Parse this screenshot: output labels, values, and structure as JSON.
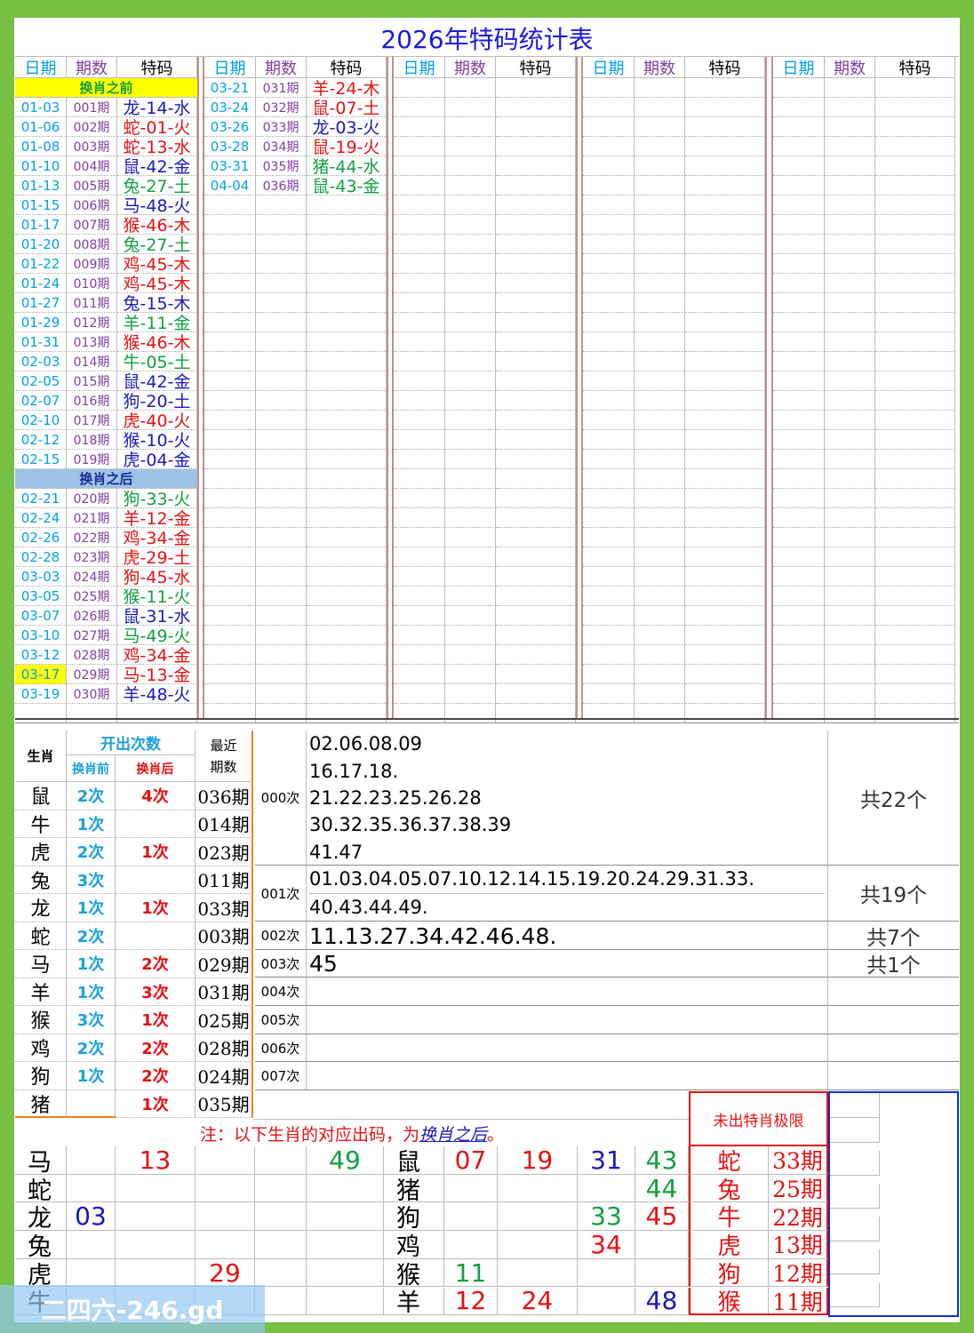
{
  "title": "2026年特码统计表",
  "groups": [
    {
      "headers": [
        "日期",
        "期数",
        "特码"
      ],
      "rows": [
        {
          "section": "换肖之前",
          "bg": "#ffff00",
          "fg": "#10a040"
        },
        {
          "date": "01-03",
          "period": "001期",
          "code": "龙-14-水",
          "color": "#1818c0"
        },
        {
          "date": "01-06",
          "period": "002期",
          "code": "蛇-01-火",
          "color": "#e81010"
        },
        {
          "date": "01-08",
          "period": "003期",
          "code": "蛇-13-水",
          "color": "#e81010"
        },
        {
          "date": "01-10",
          "period": "004期",
          "code": "鼠-42-金",
          "color": "#1818c0"
        },
        {
          "date": "01-13",
          "period": "005期",
          "code": "兔-27-土",
          "color": "#10a040"
        },
        {
          "date": "01-15",
          "period": "006期",
          "code": "马-48-火",
          "color": "#1818c0"
        },
        {
          "date": "01-17",
          "period": "007期",
          "code": "猴-46-木",
          "color": "#e81010"
        },
        {
          "date": "01-20",
          "period": "008期",
          "code": "兔-27-土",
          "color": "#10a040"
        },
        {
          "date": "01-22",
          "period": "009期",
          "code": "鸡-45-木",
          "color": "#e81010"
        },
        {
          "date": "01-24",
          "period": "010期",
          "code": "鸡-45-木",
          "color": "#e81010"
        },
        {
          "date": "01-27",
          "period": "011期",
          "code": "兔-15-木",
          "color": "#1818c0"
        },
        {
          "date": "01-29",
          "period": "012期",
          "code": "羊-11-金",
          "color": "#10a040"
        },
        {
          "date": "01-31",
          "period": "013期",
          "code": "猴-46-木",
          "color": "#e81010"
        },
        {
          "date": "02-03",
          "period": "014期",
          "code": "牛-05-土",
          "color": "#10a040"
        },
        {
          "date": "02-05",
          "period": "015期",
          "code": "鼠-42-金",
          "color": "#1818c0"
        },
        {
          "date": "02-07",
          "period": "016期",
          "code": "狗-20-土",
          "color": "#1818c0"
        },
        {
          "date": "02-10",
          "period": "017期",
          "code": "虎-40-火",
          "color": "#e81010"
        },
        {
          "date": "02-12",
          "period": "018期",
          "code": "猴-10-火",
          "color": "#1818c0"
        },
        {
          "date": "02-15",
          "period": "019期",
          "code": "虎-04-金",
          "color": "#1818c0"
        },
        {
          "section": "换肖之后",
          "bg": "#9dc3e6",
          "fg": "#1a2a9a"
        },
        {
          "date": "02-21",
          "period": "020期",
          "code": "狗-33-火",
          "color": "#10a040"
        },
        {
          "date": "02-24",
          "period": "021期",
          "code": "羊-12-金",
          "color": "#e81010"
        },
        {
          "date": "02-26",
          "period": "022期",
          "code": "鸡-34-金",
          "color": "#e81010"
        },
        {
          "date": "02-28",
          "period": "023期",
          "code": "虎-29-土",
          "color": "#e81010"
        },
        {
          "date": "03-03",
          "period": "024期",
          "code": "狗-45-水",
          "color": "#e81010"
        },
        {
          "date": "03-05",
          "period": "025期",
          "code": "猴-11-火",
          "color": "#10a040"
        },
        {
          "date": "03-07",
          "period": "026期",
          "code": "鼠-31-水",
          "color": "#1818c0"
        },
        {
          "date": "03-10",
          "period": "027期",
          "code": "马-49-火",
          "color": "#10a040"
        },
        {
          "date": "03-12",
          "period": "028期",
          "code": "鸡-34-金",
          "color": "#e81010"
        },
        {
          "date": "03-17",
          "period": "029期",
          "code": "马-13-金",
          "color": "#e81010",
          "date_bg": "#ffff00"
        },
        {
          "date": "03-19",
          "period": "030期",
          "code": "羊-48-火",
          "color": "#1818c0"
        }
      ]
    },
    {
      "headers": [
        "日期",
        "期数",
        "特码"
      ],
      "rows": [
        {
          "date": "03-21",
          "period": "031期",
          "code": "羊-24-木",
          "color": "#e81010"
        },
        {
          "date": "03-24",
          "period": "032期",
          "code": "鼠-07-土",
          "color": "#e81010"
        },
        {
          "date": "03-26",
          "period": "033期",
          "code": "龙-03-火",
          "color": "#1818c0"
        },
        {
          "date": "03-28",
          "period": "034期",
          "code": "鼠-19-火",
          "color": "#e81010"
        },
        {
          "date": "03-31",
          "period": "035期",
          "code": "猪-44-水",
          "color": "#10a040"
        },
        {
          "date": "04-04",
          "period": "036期",
          "code": "鼠-43-金",
          "color": "#10a040"
        }
      ]
    },
    {
      "headers": [
        "日期",
        "期数",
        "特码"
      ],
      "rows": []
    },
    {
      "headers": [
        "日期",
        "期数",
        "特码"
      ],
      "rows": []
    },
    {
      "headers": [
        "日期",
        "期数",
        "特码"
      ],
      "rows": []
    }
  ],
  "counts": {
    "headers": {
      "zodiac": "生肖",
      "times": "开出次数",
      "before": "换肖前",
      "after": "换肖后",
      "recent": "最近期数"
    },
    "rows": [
      {
        "zodiac": "鼠",
        "before": "2次",
        "after": "4次",
        "recent": "036期"
      },
      {
        "zodiac": "牛",
        "before": "1次",
        "after": null,
        "recent": "014期"
      },
      {
        "zodiac": "虎",
        "before": "2次",
        "after": "1次",
        "recent": "023期"
      },
      {
        "zodiac": "兔",
        "before": "3次",
        "after": null,
        "recent": "011期"
      },
      {
        "zodiac": "龙",
        "before": "1次",
        "after": "1次",
        "recent": "033期"
      },
      {
        "zodiac": "蛇",
        "before": "2次",
        "after": null,
        "recent": "003期"
      },
      {
        "zodiac": "马",
        "before": "1次",
        "after": "2次",
        "recent": "029期"
      },
      {
        "zodiac": "羊",
        "before": "1次",
        "after": "3次",
        "recent": "031期"
      },
      {
        "zodiac": "猴",
        "before": "3次",
        "after": "1次",
        "recent": "025期"
      },
      {
        "zodiac": "鸡",
        "before": "2次",
        "after": "2次",
        "recent": "028期"
      },
      {
        "zodiac": "狗",
        "before": "1次",
        "after": "2次",
        "recent": "024期"
      },
      {
        "zodiac": "猪",
        "before": null,
        "after": "1次",
        "recent": "035期"
      }
    ]
  },
  "stats": [
    {
      "label": "000次",
      "lines": [
        "02.06.08.09",
        "16.17.18.",
        "21.22.23.25.26.28",
        "30.32.35.36.37.38.39",
        "41.47"
      ],
      "total": "共22个"
    },
    {
      "label": "001次",
      "lines": [
        "01.03.04.05.07.10.12.14.15.19.20.24.29.31.33.",
        "40.43.44.49."
      ],
      "total": "共19个"
    },
    {
      "label": "002次",
      "lines": [
        "11.13.27.34.42.46.48."
      ],
      "total": "共7个"
    },
    {
      "label": "003次",
      "lines": [
        "45"
      ],
      "total": "共1个"
    },
    {
      "label": "004次",
      "lines": [],
      "total": null
    },
    {
      "label": "005次",
      "lines": [],
      "total": null
    },
    {
      "label": "006次",
      "lines": [],
      "total": null
    },
    {
      "label": "007次",
      "lines": [],
      "total": null
    }
  ],
  "note": {
    "prefix": "注：以下生肖的对应出码，为",
    "link": "换肖之后",
    "suffix": "。"
  },
  "grid_left": [
    {
      "zodiac": "马",
      "cells": [
        null,
        "13",
        null,
        null,
        "49"
      ],
      "colors": [
        null,
        "#e81010",
        null,
        null,
        "#10a040"
      ]
    },
    {
      "zodiac": "蛇",
      "cells": [
        null,
        null,
        null,
        null,
        null
      ],
      "colors": [
        null,
        null,
        null,
        null,
        null
      ]
    },
    {
      "zodiac": "龙",
      "cells": [
        "03",
        null,
        null,
        null,
        null
      ],
      "colors": [
        "#1818c0",
        null,
        null,
        null,
        null
      ]
    },
    {
      "zodiac": "兔",
      "cells": [
        null,
        null,
        null,
        null,
        null
      ],
      "colors": [
        null,
        null,
        null,
        null,
        null
      ]
    },
    {
      "zodiac": "虎",
      "cells": [
        null,
        null,
        "29",
        null,
        null
      ],
      "colors": [
        null,
        null,
        "#e81010",
        null,
        null
      ]
    },
    {
      "zodiac": "牛",
      "cells": [
        null,
        null,
        null,
        null,
        null
      ],
      "colors": [
        null,
        null,
        null,
        null,
        null
      ]
    }
  ],
  "grid_right": [
    {
      "zodiac": "鼠",
      "cells": [
        "07",
        "19",
        "31",
        "43"
      ],
      "colors": [
        "#e81010",
        "#e81010",
        "#1818c0",
        "#10a040"
      ]
    },
    {
      "zodiac": "猪",
      "cells": [
        null,
        null,
        null,
        "44"
      ],
      "colors": [
        null,
        null,
        null,
        "#10a040"
      ]
    },
    {
      "zodiac": "狗",
      "cells": [
        null,
        null,
        "33",
        "45"
      ],
      "colors": [
        null,
        null,
        "#10a040",
        "#e81010"
      ]
    },
    {
      "zodiac": "鸡",
      "cells": [
        null,
        null,
        "34",
        null
      ],
      "colors": [
        null,
        null,
        "#e81010",
        null
      ]
    },
    {
      "zodiac": "猴",
      "cells": [
        "11",
        null,
        null,
        null
      ],
      "colors": [
        "#10a040",
        null,
        null,
        null
      ]
    },
    {
      "zodiac": "羊",
      "cells": [
        "12",
        "24",
        null,
        "48"
      ],
      "colors": [
        "#e81010",
        "#e81010",
        null,
        "#1818c0"
      ]
    }
  ],
  "limits": {
    "title": "未出特肖极限",
    "rows": [
      {
        "zodiac": "蛇",
        "periods": "33期"
      },
      {
        "zodiac": "兔",
        "periods": "25期"
      },
      {
        "zodiac": "牛",
        "periods": "22期"
      },
      {
        "zodiac": "虎",
        "periods": "13期"
      },
      {
        "zodiac": "狗",
        "periods": "12期"
      },
      {
        "zodiac": "猴",
        "periods": "11期"
      }
    ]
  },
  "watermark": "二四六-246.gd"
}
